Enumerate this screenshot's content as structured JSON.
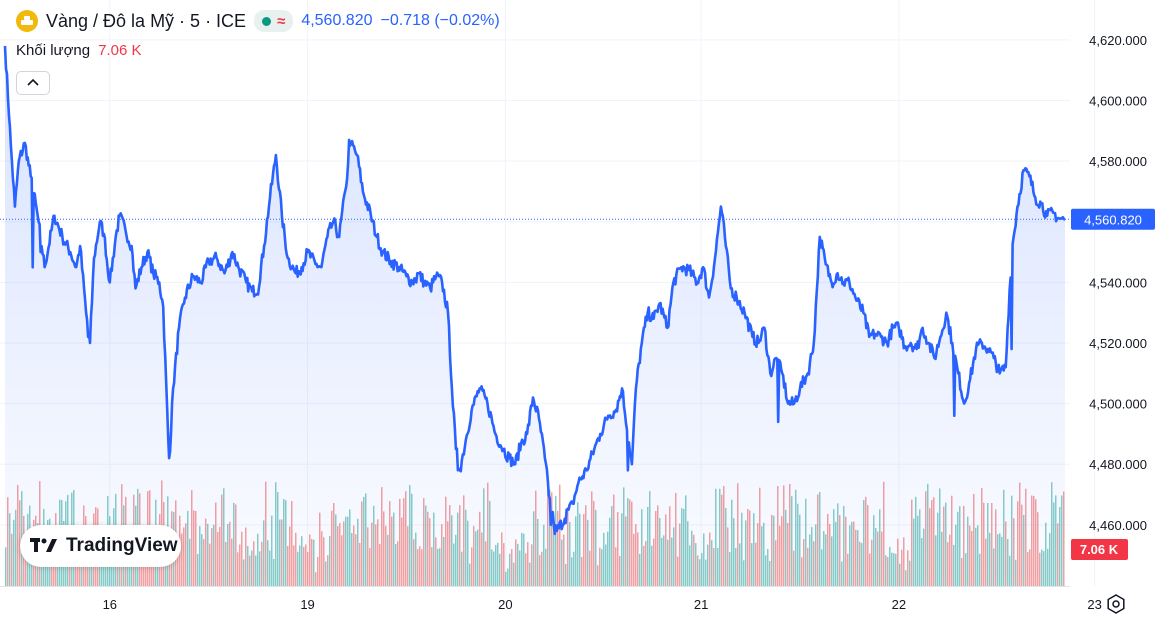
{
  "header": {
    "symbol_title": "Vàng / Đô la Mỹ · 5 · ICE",
    "last_price": "4,560.820",
    "change": "−0.718 (−0.02%)",
    "status_glyph": "≈"
  },
  "volume_legend": {
    "label": "Khối lượng",
    "value": "7.06 K"
  },
  "logo_text": "TradingView",
  "colors": {
    "line": "#2962ff",
    "up_volume": "#26a69a",
    "down_volume": "#ef5350",
    "price_tag": "#2962ff",
    "volume_tag": "#f23645"
  },
  "chart_data": {
    "type": "line",
    "x_tick_labels": [
      "16",
      "19",
      "20",
      "21",
      "22",
      "23"
    ],
    "x_ticks_index": [
      53,
      153,
      253,
      352,
      452,
      551
    ],
    "y_ticks": [
      "4,460.000",
      "4,480.000",
      "4,500.000",
      "4,520.000",
      "4,540.000",
      "4,560.000",
      "4,580.000",
      "4,600.000",
      "4,620.000"
    ],
    "ylim": [
      4447,
      4625
    ],
    "last_value_label": "4,560.820",
    "last_value": 4560.82,
    "volume_label": "7.06 K",
    "series": [
      {
        "anchors": [
          [
            0,
            4618
          ],
          [
            3,
            4585
          ],
          [
            5,
            4565
          ],
          [
            7,
            4580
          ],
          [
            10,
            4586
          ],
          [
            13,
            4575
          ],
          [
            17,
            4560
          ],
          [
            20,
            4545
          ],
          [
            25,
            4562
          ],
          [
            29,
            4555
          ],
          [
            33,
            4550
          ],
          [
            36,
            4545
          ],
          [
            38,
            4552
          ],
          [
            41,
            4530
          ],
          [
            43,
            4520
          ],
          [
            45,
            4548
          ],
          [
            48,
            4560
          ],
          [
            50,
            4556
          ],
          [
            53,
            4540
          ],
          [
            56,
            4555
          ],
          [
            58,
            4562
          ],
          [
            61,
            4557
          ],
          [
            64,
            4552
          ],
          [
            66,
            4538
          ],
          [
            69,
            4545
          ],
          [
            72,
            4550
          ],
          [
            75,
            4543
          ],
          [
            78,
            4540
          ],
          [
            80,
            4532
          ],
          [
            83,
            4480
          ],
          [
            85,
            4505
          ],
          [
            88,
            4525
          ],
          [
            91,
            4535
          ],
          [
            95,
            4542
          ],
          [
            99,
            4540
          ],
          [
            103,
            4547
          ],
          [
            107,
            4548
          ],
          [
            111,
            4543
          ],
          [
            115,
            4550
          ],
          [
            118,
            4545
          ],
          [
            122,
            4540
          ],
          [
            125,
            4537
          ],
          [
            128,
            4538
          ],
          [
            131,
            4552
          ],
          [
            134,
            4568
          ],
          [
            137,
            4582
          ],
          [
            140,
            4562
          ],
          [
            143,
            4548
          ],
          [
            147,
            4543
          ],
          [
            150,
            4545
          ],
          [
            153,
            4550
          ],
          [
            157,
            4546
          ],
          [
            160,
            4545
          ],
          [
            163,
            4555
          ],
          [
            166,
            4560
          ],
          [
            169,
            4555
          ],
          [
            172,
            4570
          ],
          [
            175,
            4586
          ],
          [
            178,
            4582
          ],
          [
            181,
            4570
          ],
          [
            185,
            4562
          ],
          [
            188,
            4555
          ],
          [
            191,
            4550
          ],
          [
            195,
            4547
          ],
          [
            199,
            4545
          ],
          [
            203,
            4542
          ],
          [
            206,
            4540
          ],
          [
            209,
            4543
          ],
          [
            212,
            4540
          ],
          [
            215,
            4538
          ],
          [
            218,
            4542
          ],
          [
            221,
            4540
          ],
          [
            224,
            4530
          ],
          [
            226,
            4505
          ],
          [
            228,
            4485
          ],
          [
            230,
            4478
          ],
          [
            233,
            4488
          ],
          [
            236,
            4498
          ],
          [
            240,
            4505
          ],
          [
            244,
            4500
          ],
          [
            248,
            4490
          ],
          [
            252,
            4485
          ],
          [
            255,
            4482
          ],
          [
            258,
            4480
          ],
          [
            261,
            4487
          ],
          [
            264,
            4490
          ],
          [
            267,
            4502
          ],
          [
            270,
            4495
          ],
          [
            273,
            4482
          ],
          [
            276,
            4465
          ],
          [
            279,
            4458
          ],
          [
            283,
            4462
          ],
          [
            287,
            4467
          ],
          [
            290,
            4474
          ],
          [
            294,
            4478
          ],
          [
            298,
            4485
          ],
          [
            301,
            4490
          ],
          [
            305,
            4496
          ],
          [
            309,
            4498
          ],
          [
            312,
            4505
          ],
          [
            315,
            4490
          ],
          [
            317,
            4480
          ],
          [
            319,
            4505
          ],
          [
            322,
            4520
          ],
          [
            325,
            4530
          ],
          [
            328,
            4528
          ],
          [
            331,
            4533
          ],
          [
            335,
            4525
          ],
          [
            338,
            4540
          ],
          [
            342,
            4545
          ],
          [
            346,
            4544
          ],
          [
            350,
            4540
          ],
          [
            353,
            4545
          ],
          [
            356,
            4535
          ],
          [
            359,
            4548
          ],
          [
            362,
            4565
          ],
          [
            364,
            4555
          ],
          [
            367,
            4538
          ],
          [
            370,
            4535
          ],
          [
            374,
            4530
          ],
          [
            378,
            4522
          ],
          [
            381,
            4520
          ],
          [
            384,
            4525
          ],
          [
            387,
            4510
          ],
          [
            390,
            4515
          ],
          [
            393,
            4510
          ],
          [
            396,
            4500
          ],
          [
            399,
            4500
          ],
          [
            402,
            4505
          ],
          [
            406,
            4510
          ],
          [
            409,
            4520
          ],
          [
            412,
            4555
          ],
          [
            415,
            4546
          ],
          [
            418,
            4540
          ],
          [
            421,
            4543
          ],
          [
            424,
            4540
          ],
          [
            427,
            4540
          ],
          [
            430,
            4535
          ],
          [
            434,
            4530
          ],
          [
            437,
            4522
          ],
          [
            440,
            4523
          ],
          [
            443,
            4522
          ],
          [
            446,
            4520
          ],
          [
            449,
            4525
          ],
          [
            452,
            4525
          ],
          [
            455,
            4519
          ],
          [
            458,
            4520
          ],
          [
            461,
            4518
          ],
          [
            464,
            4525
          ],
          [
            467,
            4520
          ],
          [
            470,
            4515
          ],
          [
            473,
            4522
          ],
          [
            476,
            4530
          ],
          [
            479,
            4520
          ],
          [
            482,
            4510
          ],
          [
            485,
            4500
          ],
          [
            488,
            4508
          ],
          [
            491,
            4518
          ],
          [
            494,
            4520
          ],
          [
            497,
            4518
          ],
          [
            500,
            4515
          ],
          [
            503,
            4510
          ],
          [
            506,
            4512
          ],
          [
            509,
            4550
          ],
          [
            512,
            4565
          ],
          [
            515,
            4577
          ],
          [
            518,
            4575
          ],
          [
            521,
            4568
          ],
          [
            524,
            4566
          ],
          [
            527,
            4562
          ],
          [
            530,
            4563
          ],
          [
            533,
            4561
          ],
          [
            536,
            4560.8
          ]
        ],
        "markers": [
          [
            14,
            4545
          ],
          [
            18,
            4550
          ],
          [
            42,
            4522
          ],
          [
            83,
            4482
          ],
          [
            128,
            4536
          ],
          [
            174,
            4587
          ],
          [
            208,
            4540
          ],
          [
            229,
            4478
          ],
          [
            276,
            4460
          ],
          [
            278,
            4457
          ],
          [
            284,
            4465
          ],
          [
            315,
            4478
          ],
          [
            391,
            4494
          ],
          [
            480,
            4496
          ],
          [
            509,
            4518
          ]
        ]
      }
    ]
  }
}
